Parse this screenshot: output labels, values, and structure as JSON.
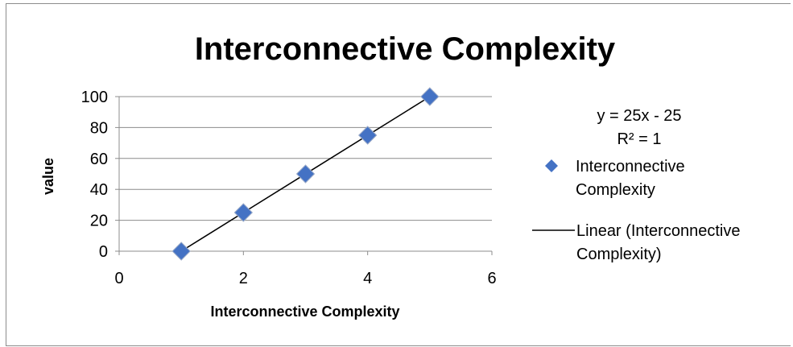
{
  "chart_data": {
    "type": "scatter",
    "title": "Interconnective Complexity",
    "xlabel": "Interconnective Complexity",
    "ylabel": "value",
    "xlim": [
      0,
      6
    ],
    "ylim": [
      0,
      100
    ],
    "x_ticks": [
      0,
      2,
      4,
      6
    ],
    "y_ticks": [
      0,
      20,
      40,
      60,
      80,
      100
    ],
    "grid": "horizontal",
    "legend_position": "right",
    "series": [
      {
        "name": "Interconnective Complexity",
        "marker": "diamond",
        "color": "#4472C4",
        "x": [
          1,
          2,
          3,
          4,
          5
        ],
        "y": [
          0,
          25,
          50,
          75,
          100
        ]
      }
    ],
    "trendline": {
      "name": "Linear (Interconnective Complexity)",
      "type": "linear",
      "color": "#000000",
      "slope": 25,
      "intercept": -25,
      "x_range": [
        1,
        5
      ],
      "equation": "y = 25x - 25",
      "r_squared": "R² = 1"
    }
  }
}
